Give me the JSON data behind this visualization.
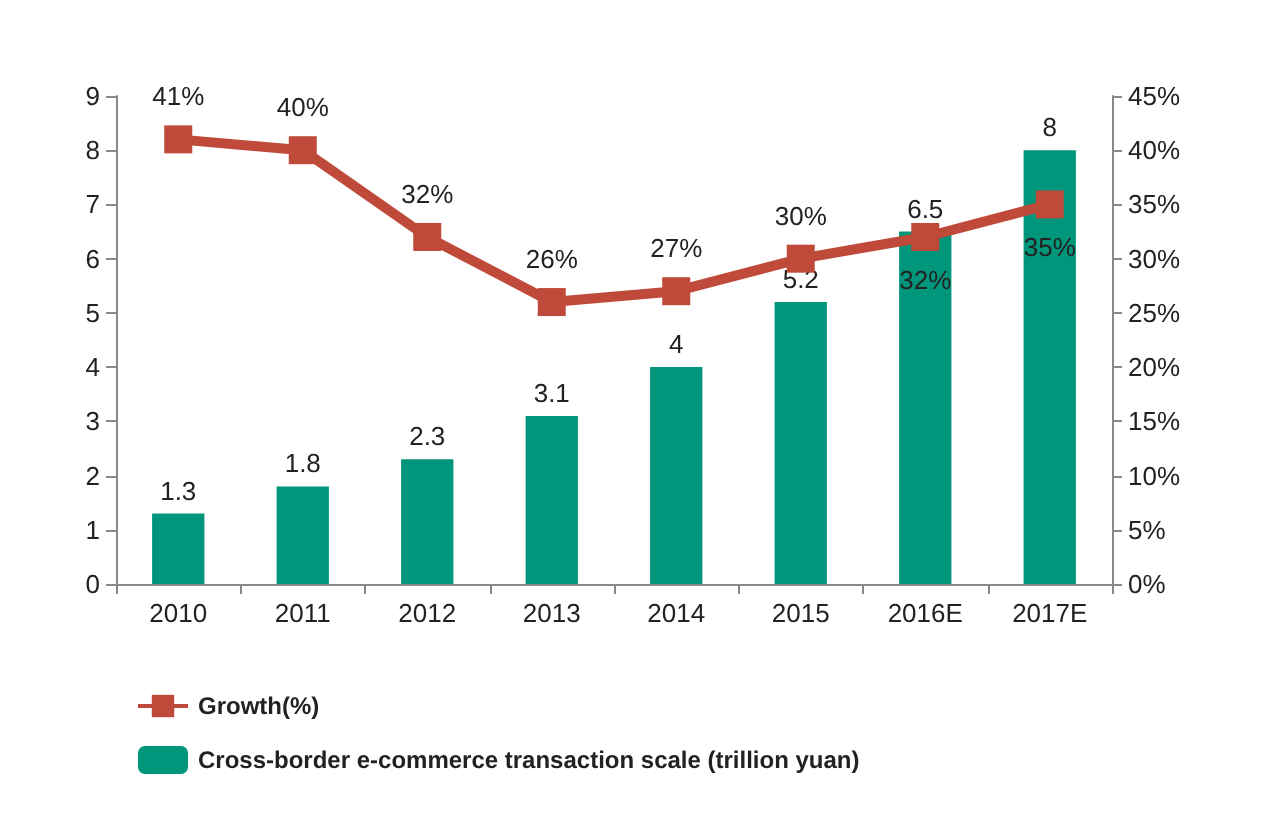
{
  "chart_data": {
    "type": "bar",
    "categories": [
      "2010",
      "2011",
      "2012",
      "2013",
      "2014",
      "2015",
      "2016E",
      "2017E"
    ],
    "series": [
      {
        "name": "Growth(%)",
        "type": "line",
        "axis": "y2",
        "color": "#bf4a3a",
        "values": [
          41,
          40,
          32,
          26,
          27,
          30,
          32,
          35
        ],
        "value_labels": [
          "41%",
          "40%",
          "32%",
          "26%",
          "27%",
          "30%",
          "32%",
          "35%"
        ]
      },
      {
        "name": "Cross-border e-commerce transaction scale (trillion yuan)",
        "color": "#00967b",
        "values": [
          1.3,
          1.8,
          2.3,
          3.1,
          4,
          5.2,
          6.5,
          8
        ],
        "value_labels": [
          "1.3",
          "1.8",
          "2.3",
          "3.1",
          "4",
          "5.2",
          "6.5",
          "8"
        ]
      }
    ],
    "ylim": [
      0,
      9
    ],
    "yticks": [
      0,
      1,
      2,
      3,
      4,
      5,
      6,
      7,
      8,
      9
    ],
    "y2lim": [
      0,
      45
    ],
    "y2ticks": [
      {
        "value": 0,
        "label": "0%"
      },
      {
        "value": 5,
        "label": "5%"
      },
      {
        "value": 10,
        "label": "10%"
      },
      {
        "value": 15,
        "label": "15%"
      },
      {
        "value": 20,
        "label": "20%"
      },
      {
        "value": 25,
        "label": "25%"
      },
      {
        "value": 30,
        "label": "30%"
      },
      {
        "value": 35,
        "label": "35%"
      },
      {
        "value": 40,
        "label": "40%"
      },
      {
        "value": 45,
        "label": "45%"
      }
    ],
    "grid": false,
    "legend": "bottom left",
    "marker": "square",
    "line_style": "solid"
  }
}
